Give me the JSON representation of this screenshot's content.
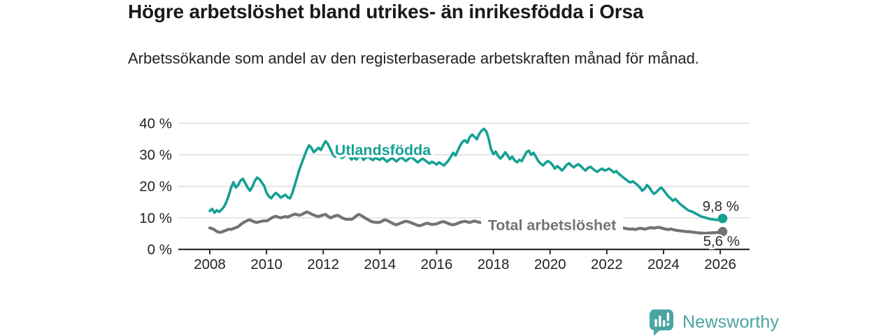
{
  "header": {
    "title": "Högre arbetslöshet bland utrikes- än inrikesfödda i Orsa",
    "subtitle": "Arbetssökande som andel av den registerbaserade arbetskraften månad för månad."
  },
  "branding": {
    "name": "Newsworthy",
    "icon": "newsworthy-speech-bubble-bar-chart-icon"
  },
  "colors": {
    "foreign_born_line": "#16a094",
    "total_line": "#737373",
    "grid": "#d9d9d9",
    "axis": "#2e2e2e",
    "text": "#222222",
    "value_label": "#2b2b2b",
    "brand": "#4aa5a0",
    "background": "#ffffff"
  },
  "chart_data": {
    "type": "line",
    "title": "Högre arbetslöshet bland utrikes- än inrikesfödda i Orsa",
    "subtitle": "Arbetssökande som andel av den registerbaserade arbetskraften månad för månad.",
    "x_unit": "month",
    "x_start": "2008-01",
    "x_end": "2026-02",
    "grid": true,
    "legend_position": "inline-labels",
    "x_tick_years": [
      2008,
      2010,
      2012,
      2014,
      2016,
      2018,
      2020,
      2022,
      2024,
      2026
    ],
    "x_tick_labels": [
      "2008",
      "2010",
      "2012",
      "2014",
      "2016",
      "2018",
      "2020",
      "2022",
      "2024",
      "2026"
    ],
    "y_ticks": [
      0,
      10,
      20,
      30,
      40
    ],
    "y_tick_labels": [
      "0 %",
      "10 %",
      "20 %",
      "30 %",
      "40 %"
    ],
    "ylim": [
      0,
      40
    ],
    "series": [
      {
        "name": "Total arbetslöshet",
        "color": "#737373",
        "end_value": 5.6,
        "end_label": "5,6 %",
        "values": [
          6.8,
          6.6,
          6.2,
          5.7,
          5.4,
          5.5,
          5.8,
          6.1,
          6.4,
          6.3,
          6.6,
          6.9,
          7.2,
          7.8,
          8.4,
          8.8,
          9.2,
          9.4,
          9.0,
          8.7,
          8.5,
          8.8,
          8.9,
          9.1,
          9.0,
          9.4,
          9.9,
          10.3,
          10.5,
          10.2,
          10.0,
          10.2,
          10.4,
          10.2,
          10.6,
          10.9,
          11.2,
          11.0,
          10.8,
          11.1,
          11.5,
          11.9,
          11.6,
          11.2,
          10.9,
          10.6,
          10.4,
          10.7,
          10.9,
          11.1,
          10.5,
          10.0,
          10.3,
          10.6,
          10.8,
          10.5,
          10.0,
          9.7,
          9.5,
          9.6,
          9.5,
          10.0,
          10.6,
          11.1,
          10.8,
          10.3,
          9.8,
          9.4,
          9.0,
          8.7,
          8.6,
          8.5,
          8.6,
          9.0,
          9.4,
          9.2,
          8.8,
          8.4,
          8.0,
          7.8,
          8.1,
          8.4,
          8.7,
          8.9,
          8.8,
          8.5,
          8.2,
          7.9,
          7.6,
          7.5,
          7.8,
          8.1,
          8.3,
          8.1,
          7.9,
          8.0,
          8.1,
          8.4,
          8.7,
          8.8,
          8.5,
          8.2,
          7.9,
          7.8,
          8.0,
          8.3,
          8.6,
          8.8,
          8.9,
          8.7,
          8.5,
          8.8,
          9.0,
          8.8,
          8.6,
          8.4,
          8.2,
          8.0,
          7.9,
          8.0,
          7.9,
          7.7,
          7.5,
          7.3,
          7.2,
          7.3,
          7.5,
          7.4,
          7.2,
          7.0,
          6.9,
          7.0,
          7.1,
          7.3,
          7.4,
          7.2,
          7.0,
          6.9,
          7.1,
          7.2,
          7.0,
          6.9,
          7.0,
          7.2,
          7.3,
          7.2,
          7.4,
          7.7,
          7.9,
          8.0,
          7.8,
          7.6,
          7.4,
          7.2,
          7.0,
          7.1,
          7.2,
          7.4,
          7.2,
          7.0,
          6.9,
          7.0,
          7.1,
          6.9,
          6.7,
          6.6,
          6.7,
          6.8,
          6.9,
          7.0,
          6.8,
          6.6,
          6.7,
          6.9,
          7.0,
          6.8,
          6.6,
          6.5,
          6.4,
          6.5,
          6.3,
          6.5,
          6.7,
          6.6,
          6.4,
          6.6,
          6.8,
          6.9,
          6.7,
          6.9,
          7.0,
          6.8,
          6.6,
          6.4,
          6.3,
          6.5,
          6.3,
          6.1,
          6.0,
          5.9,
          5.8,
          5.7,
          5.6,
          5.6,
          5.5,
          5.4,
          5.3,
          5.2,
          5.2,
          5.1,
          5.1,
          5.2,
          5.2,
          5.3,
          5.3,
          5.4,
          5.4,
          5.6
        ]
      },
      {
        "name": "Utlandsfödda",
        "color": "#16a094",
        "end_value": 9.8,
        "end_label": "9,8 %",
        "values": [
          12.2,
          12.8,
          11.6,
          12.4,
          11.9,
          12.6,
          13.5,
          15.0,
          17.0,
          19.5,
          21.3,
          19.6,
          20.4,
          21.8,
          22.4,
          21.0,
          19.6,
          18.6,
          19.8,
          21.6,
          22.8,
          22.3,
          21.2,
          20.2,
          18.0,
          16.8,
          16.2,
          17.2,
          17.9,
          17.3,
          16.4,
          16.9,
          17.3,
          16.5,
          16.2,
          18.0,
          20.5,
          23.0,
          25.5,
          27.5,
          29.5,
          31.5,
          33.0,
          32.2,
          30.8,
          31.5,
          32.2,
          31.5,
          33.0,
          34.3,
          33.4,
          31.8,
          30.2,
          29.4,
          30.1,
          29.5,
          29.0,
          29.6,
          30.2,
          29.4,
          28.5,
          29.2,
          28.5,
          29.3,
          29.8,
          28.4,
          29.0,
          29.6,
          28.8,
          28.3,
          29.0,
          28.7,
          28.4,
          29.1,
          28.5,
          27.8,
          28.4,
          29.0,
          28.5,
          27.9,
          28.6,
          29.2,
          28.6,
          28.0,
          28.6,
          29.3,
          28.8,
          28.2,
          27.6,
          28.2,
          28.8,
          28.3,
          27.7,
          27.2,
          27.8,
          27.4,
          26.9,
          27.6,
          27.1,
          26.6,
          27.3,
          28.2,
          29.4,
          30.6,
          29.8,
          31.4,
          33.0,
          34.2,
          34.6,
          33.8,
          35.6,
          36.4,
          35.7,
          34.9,
          36.6,
          37.6,
          38.2,
          37.4,
          35.2,
          31.8,
          30.2,
          31.0,
          29.6,
          28.8,
          29.6,
          30.8,
          29.8,
          28.6,
          29.4,
          28.2,
          27.6,
          28.4,
          28.0,
          29.4,
          30.8,
          31.3,
          30.0,
          30.6,
          29.4,
          28.0,
          27.2,
          26.6,
          27.4,
          28.0,
          27.6,
          26.8,
          25.6,
          26.4,
          25.8,
          25.0,
          25.8,
          26.8,
          27.3,
          26.6,
          26.0,
          26.6,
          27.0,
          26.4,
          25.6,
          25.0,
          25.8,
          26.2,
          25.6,
          25.0,
          24.6,
          25.2,
          25.6,
          25.0,
          25.2,
          25.6,
          25.0,
          24.4,
          24.8,
          24.0,
          23.4,
          22.8,
          22.2,
          21.6,
          21.2,
          21.6,
          21.0,
          20.4,
          19.6,
          18.6,
          19.2,
          20.4,
          19.6,
          18.4,
          17.6,
          18.2,
          19.0,
          19.6,
          18.8,
          17.8,
          16.8,
          16.2,
          15.4,
          16.0,
          15.2,
          14.4,
          13.8,
          13.2,
          12.6,
          12.2,
          12.0,
          11.6,
          11.2,
          10.8,
          10.4,
          10.2,
          10.0,
          9.8,
          9.6,
          9.5,
          9.4,
          9.3,
          9.5,
          9.8
        ]
      }
    ]
  }
}
